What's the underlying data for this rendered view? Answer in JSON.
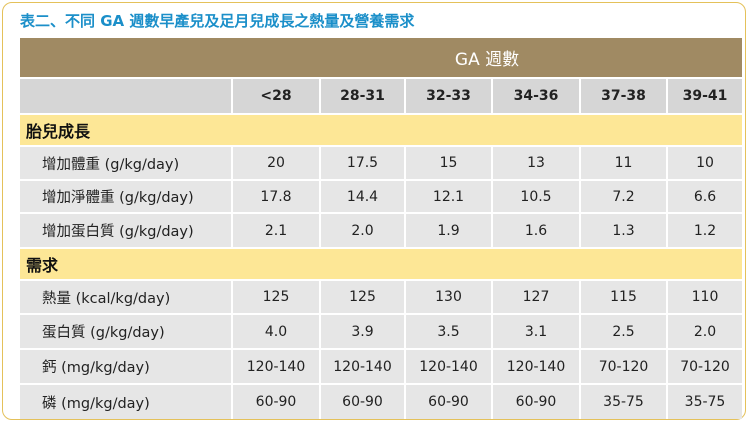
{
  "title": "表二、不同 GA 週數早產兒及足月兒成長之熱量及營養需求",
  "ga_header": "GA 週數",
  "columns": [
    "<28",
    "28-31",
    "32-33",
    "34-36",
    "37-38",
    "39-41"
  ],
  "sections": [
    {
      "label": "胎兒成長",
      "rows": [
        {
          "label": "增加體重 (g/kg/day)",
          "values": [
            "20",
            "17.5",
            "15",
            "13",
            "11",
            "10"
          ]
        },
        {
          "label": "增加淨體重 (g/kg/day)",
          "values": [
            "17.8",
            "14.4",
            "12.1",
            "10.5",
            "7.2",
            "6.6"
          ]
        },
        {
          "label": "增加蛋白質 (g/kg/day)",
          "values": [
            "2.1",
            "2.0",
            "1.9",
            "1.6",
            "1.3",
            "1.2"
          ]
        }
      ]
    },
    {
      "label": "需求",
      "rows": [
        {
          "label": "熱量 (kcal/kg/day)",
          "values": [
            "125",
            "125",
            "130",
            "127",
            "115",
            "110"
          ]
        },
        {
          "label": "蛋白質 (g/kg/day)",
          "values": [
            "4.0",
            "3.9",
            "3.5",
            "3.1",
            "2.5",
            "2.0"
          ]
        },
        {
          "label": "鈣 (mg/kg/day)",
          "values": [
            "120-140",
            "120-140",
            "120-140",
            "120-140",
            "70-120",
            "70-120"
          ]
        },
        {
          "label": "磷 (mg/kg/day)",
          "values": [
            "60-90",
            "60-90",
            "60-90",
            "60-90",
            "35-75",
            "35-75"
          ]
        }
      ]
    }
  ],
  "colors": {
    "title": "#1b8fc9",
    "ga_header_bg": "#a08a63",
    "section_bg": "#fde796",
    "cell_bg": "#e6e6e6",
    "column_header_bg": "#d6d6d6",
    "frame_border": "#e4c15a"
  }
}
